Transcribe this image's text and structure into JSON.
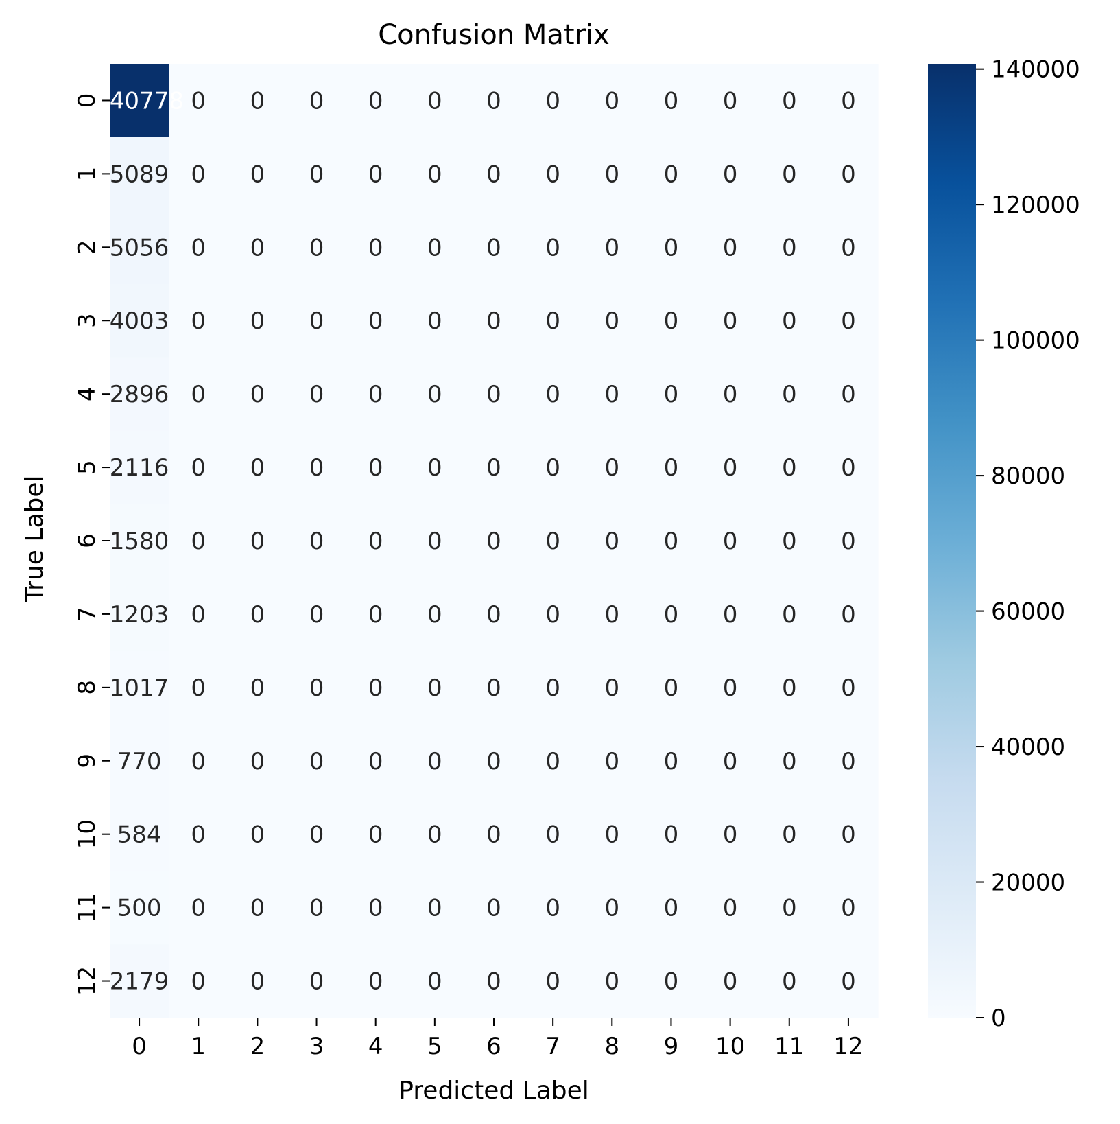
{
  "chart_data": {
    "type": "heatmap",
    "title": "Confusion Matrix",
    "xlabel": "Predicted Label",
    "ylabel": "True Label",
    "x_categories": [
      "0",
      "1",
      "2",
      "3",
      "4",
      "5",
      "6",
      "7",
      "8",
      "9",
      "10",
      "11",
      "12"
    ],
    "y_categories": [
      "0",
      "1",
      "2",
      "3",
      "4",
      "5",
      "6",
      "7",
      "8",
      "9",
      "10",
      "11",
      "12"
    ],
    "cell_labels": [
      [
        "140778",
        "0",
        "0",
        "0",
        "0",
        "0",
        "0",
        "0",
        "0",
        "0",
        "0",
        "0",
        "0"
      ],
      [
        "5089",
        "0",
        "0",
        "0",
        "0",
        "0",
        "0",
        "0",
        "0",
        "0",
        "0",
        "0",
        "0"
      ],
      [
        "5056",
        "0",
        "0",
        "0",
        "0",
        "0",
        "0",
        "0",
        "0",
        "0",
        "0",
        "0",
        "0"
      ],
      [
        "4003",
        "0",
        "0",
        "0",
        "0",
        "0",
        "0",
        "0",
        "0",
        "0",
        "0",
        "0",
        "0"
      ],
      [
        "2896",
        "0",
        "0",
        "0",
        "0",
        "0",
        "0",
        "0",
        "0",
        "0",
        "0",
        "0",
        "0"
      ],
      [
        "2116",
        "0",
        "0",
        "0",
        "0",
        "0",
        "0",
        "0",
        "0",
        "0",
        "0",
        "0",
        "0"
      ],
      [
        "1580",
        "0",
        "0",
        "0",
        "0",
        "0",
        "0",
        "0",
        "0",
        "0",
        "0",
        "0",
        "0"
      ],
      [
        "1203",
        "0",
        "0",
        "0",
        "0",
        "0",
        "0",
        "0",
        "0",
        "0",
        "0",
        "0",
        "0"
      ],
      [
        "1017",
        "0",
        "0",
        "0",
        "0",
        "0",
        "0",
        "0",
        "0",
        "0",
        "0",
        "0",
        "0"
      ],
      [
        "770",
        "0",
        "0",
        "0",
        "0",
        "0",
        "0",
        "0",
        "0",
        "0",
        "0",
        "0",
        "0"
      ],
      [
        "584",
        "0",
        "0",
        "0",
        "0",
        "0",
        "0",
        "0",
        "0",
        "0",
        "0",
        "0",
        "0"
      ],
      [
        "500",
        "0",
        "0",
        "0",
        "0",
        "0",
        "0",
        "0",
        "0",
        "0",
        "0",
        "0",
        "0"
      ],
      [
        "2179",
        "0",
        "0",
        "0",
        "0",
        "0",
        "0",
        "0",
        "0",
        "0",
        "0",
        "0",
        "0"
      ]
    ],
    "colorbar": {
      "colormap": "Blues",
      "range": [
        0,
        140778
      ],
      "ticks": [
        0,
        20000,
        40000,
        60000,
        80000,
        100000,
        120000,
        140000
      ],
      "tick_labels": [
        "0",
        "20000",
        "40000",
        "60000",
        "80000",
        "100000",
        "120000",
        "140000"
      ]
    },
    "grid": false
  }
}
